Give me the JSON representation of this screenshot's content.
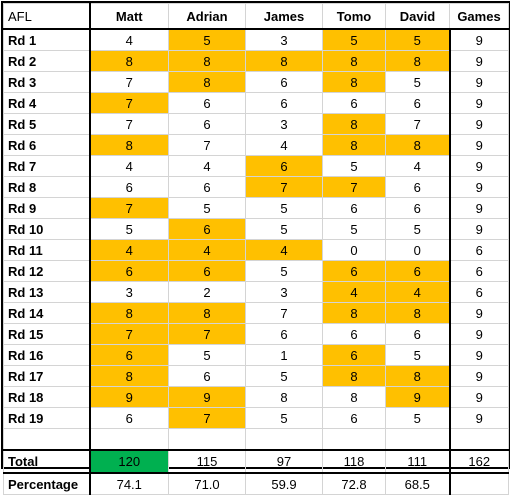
{
  "header": {
    "label": "AFL",
    "players": [
      "Matt",
      "Adrian",
      "James",
      "Tomo",
      "David"
    ],
    "games_label": "Games"
  },
  "highlight_color": "#ffc000",
  "leader_color": "#00b050",
  "rounds": [
    {
      "label": "Rd 1",
      "scores": [
        4,
        5,
        3,
        5,
        5
      ],
      "highlight": [
        false,
        true,
        false,
        true,
        true
      ],
      "games": 9
    },
    {
      "label": "Rd 2",
      "scores": [
        8,
        8,
        8,
        8,
        8
      ],
      "highlight": [
        true,
        true,
        true,
        true,
        true
      ],
      "games": 9
    },
    {
      "label": "Rd 3",
      "scores": [
        7,
        8,
        6,
        8,
        5
      ],
      "highlight": [
        false,
        true,
        false,
        true,
        false
      ],
      "games": 9
    },
    {
      "label": "Rd 4",
      "scores": [
        7,
        6,
        6,
        6,
        6
      ],
      "highlight": [
        true,
        false,
        false,
        false,
        false
      ],
      "games": 9
    },
    {
      "label": "Rd 5",
      "scores": [
        7,
        6,
        3,
        8,
        7
      ],
      "highlight": [
        false,
        false,
        false,
        true,
        false
      ],
      "games": 9
    },
    {
      "label": "Rd 6",
      "scores": [
        8,
        7,
        4,
        8,
        8
      ],
      "highlight": [
        true,
        false,
        false,
        true,
        true
      ],
      "games": 9
    },
    {
      "label": "Rd 7",
      "scores": [
        4,
        4,
        6,
        5,
        4
      ],
      "highlight": [
        false,
        false,
        true,
        false,
        false
      ],
      "games": 9
    },
    {
      "label": "Rd 8",
      "scores": [
        6,
        6,
        7,
        7,
        6
      ],
      "highlight": [
        false,
        false,
        true,
        true,
        false
      ],
      "games": 9
    },
    {
      "label": "Rd 9",
      "scores": [
        7,
        5,
        5,
        6,
        6
      ],
      "highlight": [
        true,
        false,
        false,
        false,
        false
      ],
      "games": 9
    },
    {
      "label": "Rd 10",
      "scores": [
        5,
        6,
        5,
        5,
        5
      ],
      "highlight": [
        false,
        true,
        false,
        false,
        false
      ],
      "games": 9
    },
    {
      "label": "Rd 11",
      "scores": [
        4,
        4,
        4,
        0,
        0
      ],
      "highlight": [
        true,
        true,
        true,
        false,
        false
      ],
      "games": 6
    },
    {
      "label": "Rd 12",
      "scores": [
        6,
        6,
        5,
        6,
        6
      ],
      "highlight": [
        true,
        true,
        false,
        true,
        true
      ],
      "games": 6
    },
    {
      "label": "Rd 13",
      "scores": [
        3,
        2,
        3,
        4,
        4
      ],
      "highlight": [
        false,
        false,
        false,
        true,
        true
      ],
      "games": 6
    },
    {
      "label": "Rd 14",
      "scores": [
        8,
        8,
        7,
        8,
        8
      ],
      "highlight": [
        true,
        true,
        false,
        true,
        true
      ],
      "games": 9
    },
    {
      "label": "Rd 15",
      "scores": [
        7,
        7,
        6,
        6,
        6
      ],
      "highlight": [
        true,
        true,
        false,
        false,
        false
      ],
      "games": 9
    },
    {
      "label": "Rd 16",
      "scores": [
        6,
        5,
        1,
        6,
        5
      ],
      "highlight": [
        true,
        false,
        false,
        true,
        false
      ],
      "games": 9
    },
    {
      "label": "Rd 17",
      "scores": [
        8,
        6,
        5,
        8,
        8
      ],
      "highlight": [
        true,
        false,
        false,
        true,
        true
      ],
      "games": 9
    },
    {
      "label": "Rd 18",
      "scores": [
        9,
        9,
        8,
        8,
        9
      ],
      "highlight": [
        true,
        true,
        false,
        false,
        true
      ],
      "games": 9
    },
    {
      "label": "Rd 19",
      "scores": [
        6,
        7,
        5,
        6,
        5
      ],
      "highlight": [
        false,
        true,
        false,
        false,
        false
      ],
      "games": 9
    }
  ],
  "total": {
    "label": "Total",
    "values": [
      120,
      115,
      97,
      118,
      111
    ],
    "leader": [
      true,
      false,
      false,
      false,
      false
    ],
    "games": 162
  },
  "percentage": {
    "label": "Percentage",
    "values": [
      "74.1",
      "71.0",
      "59.9",
      "72.8",
      "68.5"
    ]
  }
}
